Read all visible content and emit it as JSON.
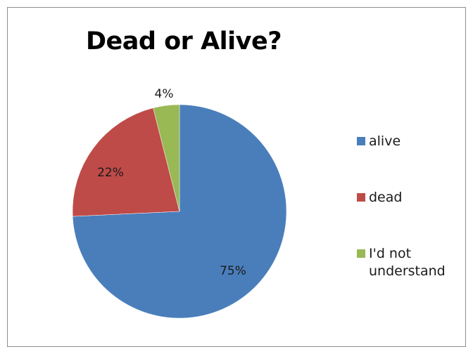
{
  "chart_data": {
    "type": "pie",
    "title": "Dead or Alive?",
    "slices": [
      {
        "name": "alive",
        "value": 75,
        "label": "75%",
        "color": "#4a7ebb"
      },
      {
        "name": "dead",
        "value": 22,
        "label": "22%",
        "color": "#be4b48"
      },
      {
        "name": "I'd not understand",
        "value": 4,
        "label": "4%",
        "color": "#98b954"
      }
    ],
    "legend_position": "right",
    "start_angle_deg": 0,
    "direction": "clockwise"
  }
}
